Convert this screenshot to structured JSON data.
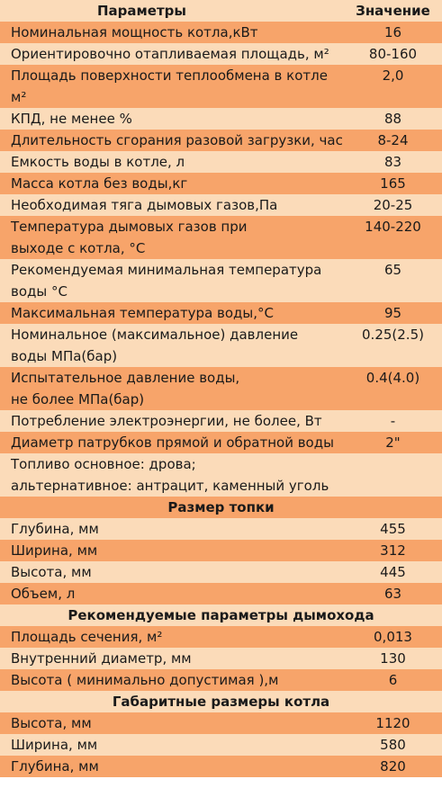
{
  "header": {
    "param_label": "Параметры",
    "value_label": "Значение"
  },
  "colors": {
    "dark_band": "#f7a46a",
    "light_band": "#fbdbb9"
  },
  "rows": [
    {
      "type": "row",
      "label": "Номинальная мощность котла,кВт",
      "value": "16"
    },
    {
      "type": "row",
      "label": "Ориентировочно отапливаемая площадь, м²",
      "value": "80-160"
    },
    {
      "type": "row",
      "label": "Площадь поверхности теплообмена в котле м²",
      "value": "2,0"
    },
    {
      "type": "row",
      "label": "КПД, не менее %",
      "value": "88"
    },
    {
      "type": "row",
      "label": "Длительность сгорания разовой загрузки, час",
      "value": "8-24"
    },
    {
      "type": "row",
      "label": "Емкость воды в котле, л",
      "value": "83"
    },
    {
      "type": "row",
      "label": "Масса котла без воды,кг",
      "value": "165"
    },
    {
      "type": "row",
      "label": "Необходимая тяга дымовых газов,Па",
      "value": "20-25"
    },
    {
      "type": "row",
      "label": "Температура дымовых газов при\nвыходе с котла, °С",
      "value": "140-220"
    },
    {
      "type": "row",
      "label": "Рекомендуемая минимальная температура\nводы °С",
      "value": "65"
    },
    {
      "type": "row",
      "label": "Максимальная температура воды,°С",
      "value": "95"
    },
    {
      "type": "row",
      "label": "Номинальное (максимальное) давление\nводы МПа(бар)",
      "value": "0.25(2.5)"
    },
    {
      "type": "row",
      "label": "Испытательное давление воды,\nне более     МПа(бар)",
      "value": "0.4(4.0)"
    },
    {
      "type": "row",
      "label": "Потребление электроэнергии, не более, Вт",
      "value": "-"
    },
    {
      "type": "row",
      "label": "Диаметр патрубков прямой и обратной воды",
      "value": "2\""
    },
    {
      "type": "row",
      "label": "Топливо основное: дрова;\nальтернативное: антрацит, каменный уголь",
      "value": ""
    },
    {
      "type": "section",
      "label": "Размер топки"
    },
    {
      "type": "row",
      "label": "Глубина, мм",
      "value": "455"
    },
    {
      "type": "row",
      "label": "Ширина, мм",
      "value": "312"
    },
    {
      "type": "row",
      "label": "Высота, мм",
      "value": "445"
    },
    {
      "type": "row",
      "label": "Объем, л",
      "value": "63"
    },
    {
      "type": "section",
      "label": "Рекомендуемые параметры дымохода"
    },
    {
      "type": "row",
      "label": "Площадь сечения, м²",
      "value": "0,013"
    },
    {
      "type": "row",
      "label": "Внутренний диаметр,    мм",
      "value": "130"
    },
    {
      "type": "row",
      "label": "Высота ( минимально допустимая ),м",
      "value": "6"
    },
    {
      "type": "section",
      "label": "Габаритные размеры котла"
    },
    {
      "type": "row",
      "label": "Высота, мм",
      "value": "1120"
    },
    {
      "type": "row",
      "label": "Ширина, мм",
      "value": "580"
    },
    {
      "type": "row",
      "label": "Глубина, мм",
      "value": "820"
    }
  ]
}
